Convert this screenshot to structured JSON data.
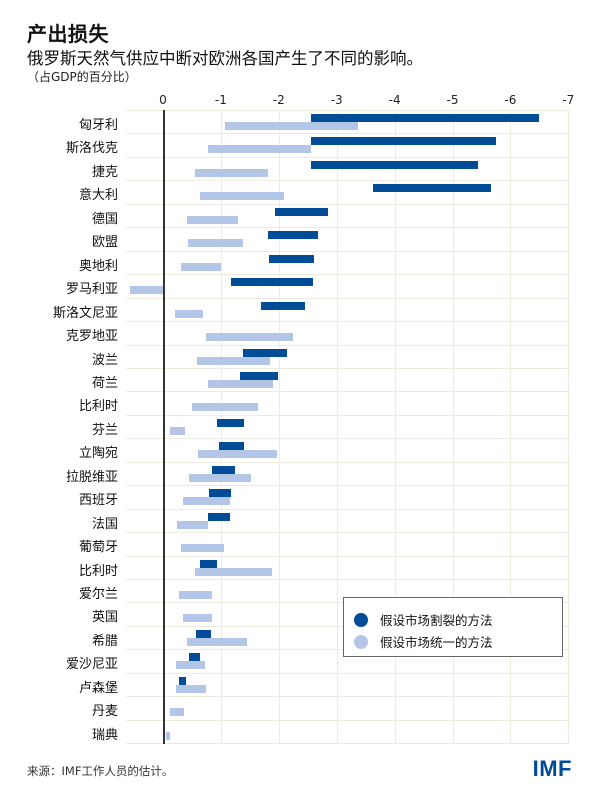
{
  "header": {
    "title": "产出损失",
    "subtitle": "俄罗斯天然气供应中断对欧洲各国产生了不同的影响。",
    "unit": "（占GDP的百分比）"
  },
  "colors": {
    "fragmented": "#004c97",
    "integrated": "#b4c6e7",
    "grid": "#efebe0",
    "zero_line": "#333333"
  },
  "legend": {
    "items": [
      {
        "label": "假设市场割裂的方法",
        "color": "#004c97"
      },
      {
        "label": "假设市场统一的方法",
        "color": "#b4c6e7"
      }
    ]
  },
  "footer": {
    "source": "来源：IMF工作人员的估计。",
    "logo": "IMF"
  },
  "chart_data": {
    "type": "bar",
    "orientation": "horizontal-floating-range",
    "title": "产出损失",
    "subtitle": "俄罗斯天然气供应中断对欧洲各国产生了不同的影响。",
    "xlabel": "（占GDP的百分比）",
    "ylabel": "",
    "xlim": [
      0.6,
      -7
    ],
    "x_ticks": [
      "0",
      "-1",
      "-2",
      "-3",
      "-4",
      "-5",
      "-6",
      "-7"
    ],
    "x_tick_values": [
      0,
      -1,
      -2,
      -3,
      -4,
      -5,
      -6,
      -7
    ],
    "grid": true,
    "legend_position": "lower-right inside",
    "categories": [
      "匈牙利",
      "斯洛伐克",
      "捷克",
      "意大利",
      "德国",
      "欧盟",
      "奥地利",
      "罗马利亚",
      "斯洛文尼亚",
      "克罗地亚",
      "波兰",
      "荷兰",
      "比利时",
      "芬兰",
      "立陶宛",
      "拉脱维亚",
      "西班牙",
      "法国",
      "葡萄牙",
      "比利时",
      "爱尔兰",
      "英国",
      "希腊",
      "爱沙尼亚",
      "卢森堡",
      "丹麦",
      "瑞典"
    ],
    "series": [
      {
        "name": "假设市场割裂的方法",
        "color": "#004c97",
        "ranges": [
          [
            -2.55,
            -6.5
          ],
          [
            -2.56,
            -5.75
          ],
          [
            -2.56,
            -5.44
          ],
          [
            -3.63,
            -5.66
          ],
          [
            -1.93,
            -2.85
          ],
          [
            -1.81,
            -2.68
          ],
          [
            -1.83,
            -2.6
          ],
          [
            -1.17,
            -2.59
          ],
          [
            -1.69,
            -2.45
          ],
          null,
          [
            -1.38,
            -2.14
          ],
          [
            -1.33,
            -1.99
          ],
          null,
          [
            -0.93,
            -1.4
          ],
          [
            -0.97,
            -1.4
          ],
          [
            -0.85,
            -1.24
          ],
          [
            -0.79,
            -1.17
          ],
          [
            -0.78,
            -1.16
          ],
          null,
          [
            -0.64,
            -0.93
          ],
          null,
          null,
          [
            -0.57,
            -0.83
          ],
          [
            -0.45,
            -0.64
          ],
          [
            -0.28,
            -0.4
          ],
          null,
          null
        ]
      },
      {
        "name": "假设市场统一的方法",
        "color": "#b4c6e7",
        "ranges": [
          [
            -1.07,
            -3.37
          ],
          [
            -0.78,
            -2.56
          ],
          [
            -0.55,
            -1.81
          ],
          [
            -0.64,
            -2.09
          ],
          [
            -0.41,
            -1.3
          ],
          [
            -0.43,
            -1.38
          ],
          [
            -0.31,
            -1.0
          ],
          [
            0.57,
            0
          ],
          [
            -0.21,
            -0.69
          ],
          [
            -0.74,
            -2.25
          ],
          [
            -0.59,
            -1.85
          ],
          [
            -0.78,
            -1.9
          ],
          [
            -0.5,
            -1.64
          ],
          [
            -0.12,
            -0.38
          ],
          [
            -0.6,
            -1.97
          ],
          [
            -0.45,
            -1.52
          ],
          [
            -0.35,
            -1.16
          ],
          [
            -0.24,
            -0.78
          ],
          [
            -0.31,
            -1.05
          ],
          [
            -0.55,
            -1.88
          ],
          [
            -0.28,
            -0.85
          ],
          [
            -0.35,
            -0.85
          ],
          [
            -0.41,
            -1.45
          ],
          [
            -0.22,
            -0.72
          ],
          [
            -0.22,
            -0.74
          ],
          [
            -0.12,
            -0.36
          ],
          [
            -0.05,
            -0.12
          ]
        ]
      }
    ]
  }
}
